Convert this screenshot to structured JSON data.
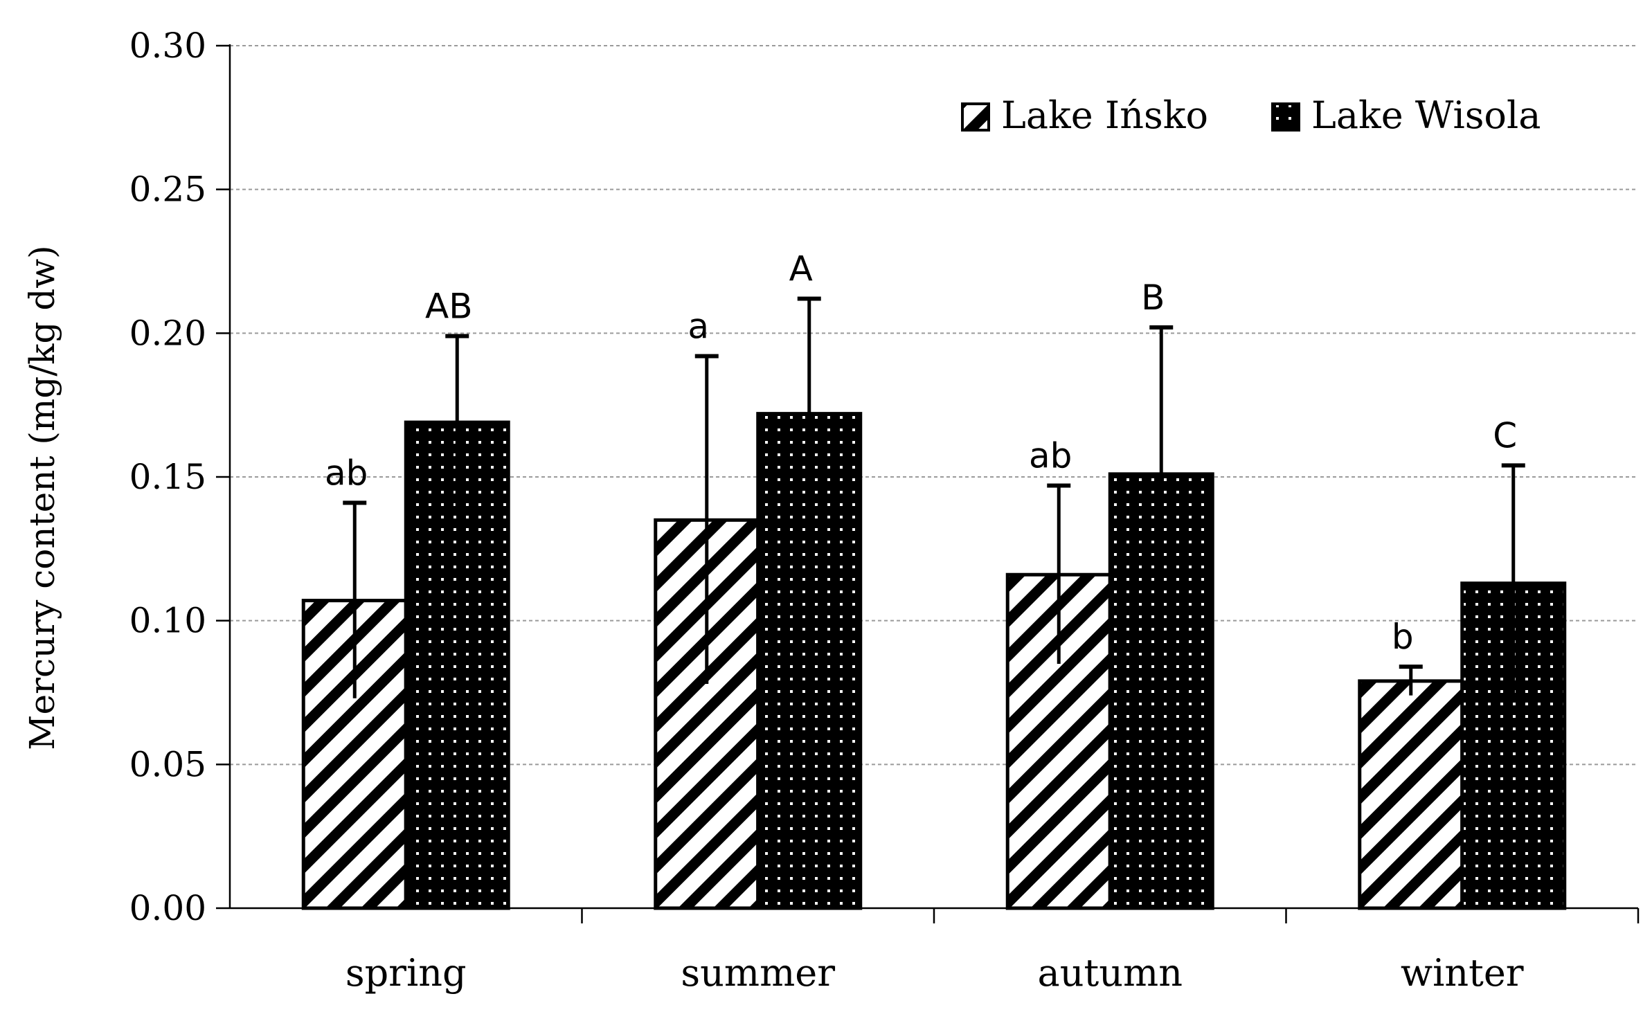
{
  "chart_data": {
    "type": "bar",
    "title": "",
    "xlabel": "",
    "ylabel": "Mercury content (mg/kg dw)",
    "ylim": [
      0,
      0.3
    ],
    "yticks": [
      "0.00",
      "0.05",
      "0.10",
      "0.15",
      "0.20",
      "0.25",
      "0.30"
    ],
    "grid": true,
    "legend_position": "top-right",
    "categories": [
      "spring",
      "summer",
      "autumn",
      "winter"
    ],
    "series": [
      {
        "name": "Lake Ińsko",
        "pattern": "diagonal-stripes",
        "values": [
          0.107,
          0.135,
          0.116,
          0.079
        ],
        "errors": [
          0.034,
          0.057,
          0.031,
          0.005
        ],
        "sig_labels": [
          "ab",
          "a",
          "ab",
          "b"
        ]
      },
      {
        "name": "Lake Wisola",
        "pattern": "black-dotted",
        "values": [
          0.169,
          0.172,
          0.151,
          0.113
        ],
        "errors": [
          0.03,
          0.04,
          0.051,
          0.041
        ],
        "sig_labels": [
          "AB",
          "A",
          "B",
          "C"
        ]
      }
    ]
  },
  "colors": {
    "axis": "#000000",
    "grid": "#9a9a9a",
    "bar_stroke": "#000000",
    "background": "#ffffff"
  }
}
